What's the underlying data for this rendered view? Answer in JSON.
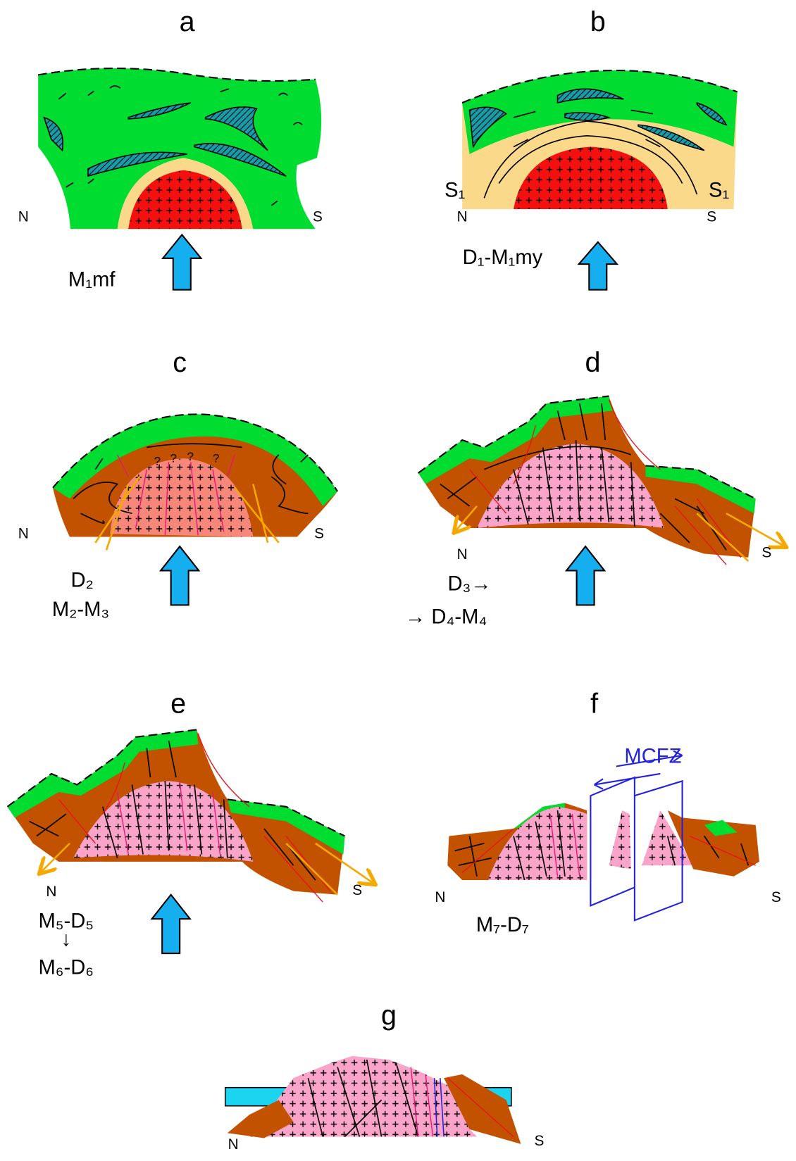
{
  "panels": [
    {
      "label": "a",
      "north": "N",
      "south": "S",
      "stage": [
        "M₁mf"
      ]
    },
    {
      "label": "b",
      "north": "N",
      "south": "S",
      "stage": [
        "D₁-M₁my"
      ],
      "foliation": [
        "S₁",
        "S₁"
      ]
    },
    {
      "label": "c",
      "north": "N",
      "south": "S",
      "stage": [
        "D₂",
        "M₂-M₃"
      ],
      "marks": [
        "?",
        "?",
        "?",
        "?"
      ]
    },
    {
      "label": "d",
      "north": "N",
      "south": "S",
      "stage": [
        "D₃→",
        "→ D₄-M₄"
      ]
    },
    {
      "label": "e",
      "north": "N",
      "south": "S",
      "stage": [
        "M₅-D₅",
        "↓",
        "M₆-D₆"
      ]
    },
    {
      "label": "f",
      "north": "N",
      "south": "S",
      "stage": [
        "M₇-D₇"
      ],
      "zone": "MCFZ"
    },
    {
      "label": "g",
      "north": "N",
      "south": "S"
    }
  ]
}
